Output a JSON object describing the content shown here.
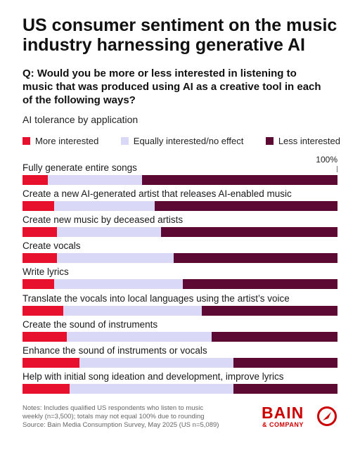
{
  "chart_data": {
    "type": "bar",
    "orientation": "horizontal",
    "stacked": true,
    "title": "US consumer sentiment on the music industry harnessing generative AI",
    "question": "Q: Would you be more or less interested in listening to music that was produced using AI as a creative tool in each of the following ways?",
    "subtitle": "AI tolerance by application",
    "scale_label": "100%",
    "xlim": [
      0,
      100
    ],
    "legend_position": "top",
    "categories": [
      "Fully generate entire songs",
      "Create a new AI-generated artist that releases AI-enabled music",
      "Create new music by deceased artists",
      "Create vocals",
      "Write lyrics",
      "Translate the vocals into local languages using the artist’s voice",
      "Create the sound of instruments",
      "Enhance the sound of instruments or vocals",
      "Help with initial song ideation and development, improve lyrics"
    ],
    "series": [
      {
        "name": "More interested",
        "color": "#e8112d",
        "values": [
          8,
          10,
          11,
          11,
          10,
          13,
          14,
          18,
          15
        ]
      },
      {
        "name": "Equally interested/no effect",
        "color": "#d9d9f7",
        "values": [
          30,
          32,
          33,
          37,
          41,
          44,
          46,
          49,
          52
        ]
      },
      {
        "name": "Less interested",
        "color": "#5c0a33",
        "values": [
          62,
          58,
          56,
          52,
          49,
          43,
          40,
          33,
          33
        ]
      }
    ]
  },
  "footer": {
    "notes_line1": "Notes: Includes qualified US respondents who listen to music",
    "notes_line2": "weekly (n=3,500); totals may not equal 100% due to rounding",
    "notes_line3": "Source: Bain Media Consumption Survey, May 2025 (US n=5,089)"
  },
  "brand": {
    "name": "BAIN",
    "sub": "& COMPANY",
    "color": "#cc0000"
  }
}
